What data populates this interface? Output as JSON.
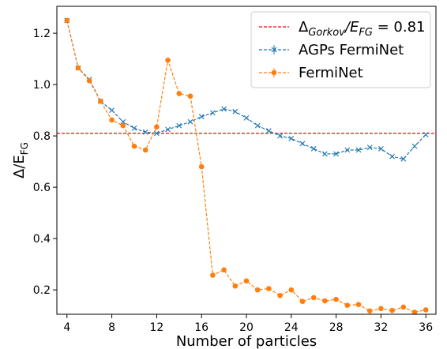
{
  "chart_data": {
    "type": "line",
    "xlabel": "Number of particles",
    "ylabel_main": "Δ/E",
    "ylabel_sub": "FG",
    "xlim": [
      3.1,
      36.9
    ],
    "ylim": [
      0.105,
      1.305
    ],
    "xticks": [
      4,
      8,
      12,
      16,
      20,
      24,
      28,
      32,
      36
    ],
    "yticks": [
      0.2,
      0.4,
      0.6,
      0.8,
      1.0,
      1.2
    ],
    "grid": false,
    "legend_position": "top-right",
    "reference_line": {
      "y": 0.81,
      "color": "#ff0000",
      "label_delta": "Δ",
      "label_sub1": "Gorkov",
      "label_mid": "/E",
      "label_sub2": "FG",
      "label_tail": " = 0.81"
    },
    "series": [
      {
        "name": "AGPs FermiNet",
        "color": "#1f77b4",
        "marker": "x",
        "x": [
          4,
          5,
          6,
          7,
          8,
          9,
          10,
          11,
          12,
          13,
          14,
          15,
          16,
          17,
          18,
          19,
          20,
          21,
          22,
          23,
          24,
          25,
          26,
          27,
          28,
          29,
          30,
          31,
          32,
          33,
          34,
          35,
          36
        ],
        "y": [
          1.25,
          1.065,
          1.02,
          0.935,
          0.9,
          0.855,
          0.83,
          0.815,
          0.81,
          0.825,
          0.84,
          0.855,
          0.875,
          0.89,
          0.905,
          0.895,
          0.87,
          0.84,
          0.82,
          0.8,
          0.79,
          0.77,
          0.75,
          0.73,
          0.73,
          0.745,
          0.745,
          0.755,
          0.75,
          0.72,
          0.71,
          0.76,
          0.805
        ]
      },
      {
        "name": "FermiNet",
        "color": "#ff7f0e",
        "marker": "o",
        "x": [
          4,
          5,
          6,
          7,
          8,
          9,
          10,
          11,
          12,
          13,
          14,
          15,
          16,
          17,
          18,
          19,
          20,
          21,
          22,
          23,
          24,
          25,
          26,
          27,
          28,
          29,
          30,
          31,
          32,
          33,
          34,
          35,
          36
        ],
        "y": [
          1.25,
          1.065,
          1.015,
          0.935,
          0.862,
          0.84,
          0.76,
          0.745,
          0.835,
          1.095,
          0.965,
          0.955,
          0.68,
          0.257,
          0.278,
          0.215,
          0.235,
          0.2,
          0.205,
          0.178,
          0.2,
          0.155,
          0.17,
          0.157,
          0.163,
          0.14,
          0.143,
          0.118,
          0.127,
          0.12,
          0.133,
          0.113,
          0.122
        ]
      }
    ]
  }
}
